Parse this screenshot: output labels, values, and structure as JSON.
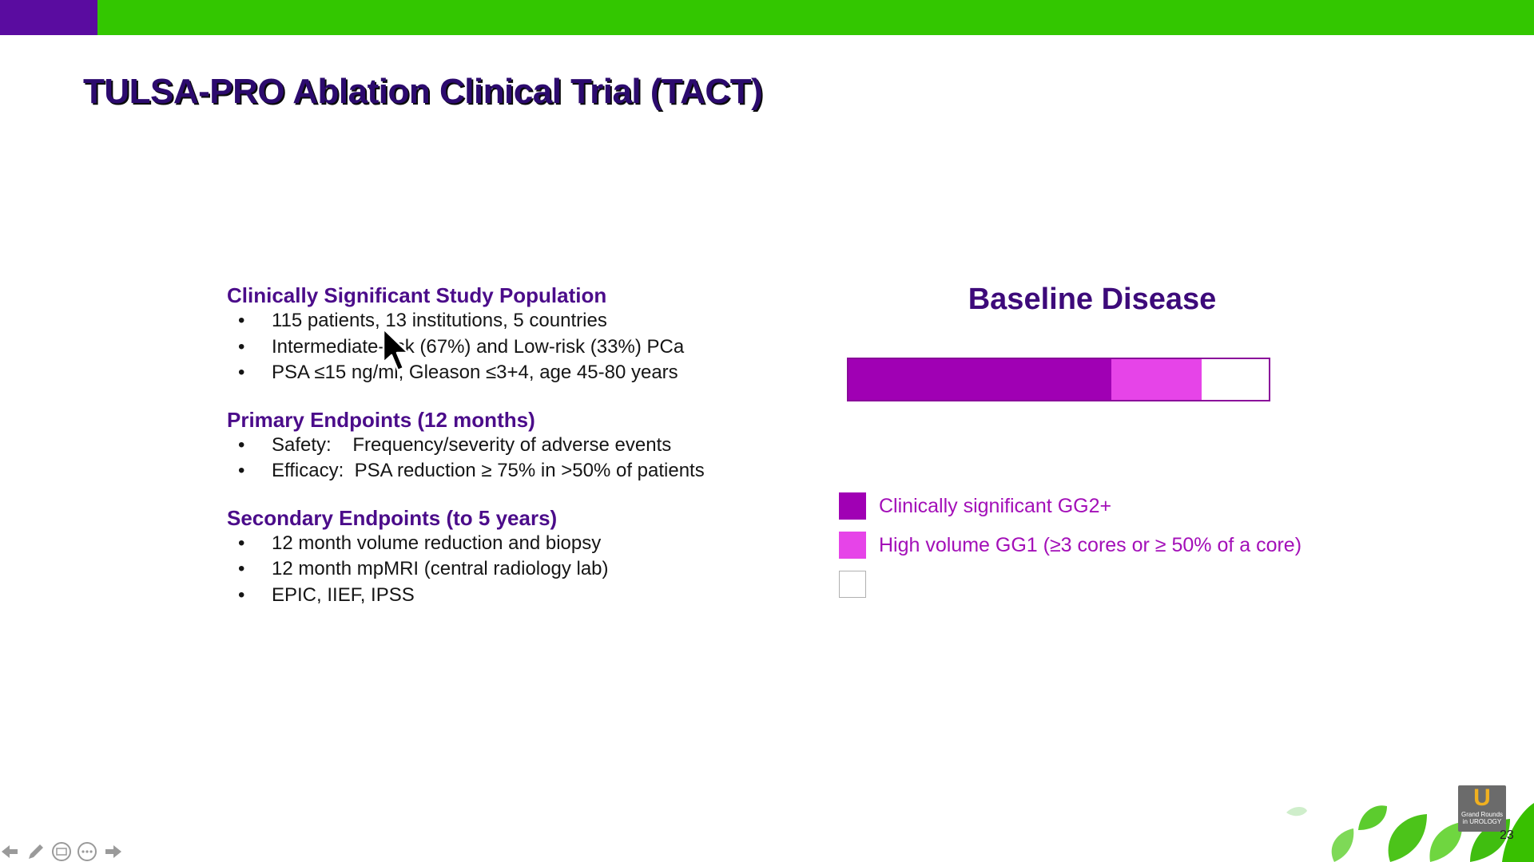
{
  "slide": {
    "title": "TULSA-PRO Ablation Clinical Trial (TACT)",
    "page_number": "23"
  },
  "sections": [
    {
      "heading": "Clinically Significant Study Population",
      "bullets": [
        "115 patients, 13 institutions, 5 countries",
        "Intermediate-risk (67%) and Low-risk (33%) PCa",
        "PSA ≤15 ng/ml, Gleason ≤3+4, age 45-80 years"
      ]
    },
    {
      "heading": "Primary Endpoints (12 months)",
      "bullets": [
        "Safety:    Frequency/severity of adverse events",
        "Efficacy:  PSA reduction ≥ 75% in >50% of patients"
      ]
    },
    {
      "heading": "Secondary Endpoints (to 5 years)",
      "bullets": [
        "12 month volume reduction and biopsy",
        "12 month mpMRI (central radiology lab)",
        "EPIC, IIEF, IPSS"
      ]
    }
  ],
  "chart_data": {
    "type": "bar",
    "stacked": true,
    "orientation": "horizontal",
    "title": "Baseline Disease",
    "xlabel": "",
    "ylabel": "",
    "series": [
      {
        "name": "Clinically significant GG2+",
        "value": 0.625,
        "color": "#a000b4"
      },
      {
        "name": "High volume GG1 (≥3 cores or ≥ 50% of a core)",
        "value": 0.215,
        "color": "#e644e8"
      },
      {
        "name": "",
        "value": 0.16,
        "color": "#ffffff"
      }
    ],
    "legend_position": "bottom"
  },
  "logo": {
    "mark": "U",
    "text": "Grand Rounds in UROLOGY"
  },
  "nav": {
    "icons": [
      "arrow-left-icon",
      "pen-icon",
      "slides-grid-icon",
      "more-icon",
      "arrow-right-icon"
    ]
  }
}
